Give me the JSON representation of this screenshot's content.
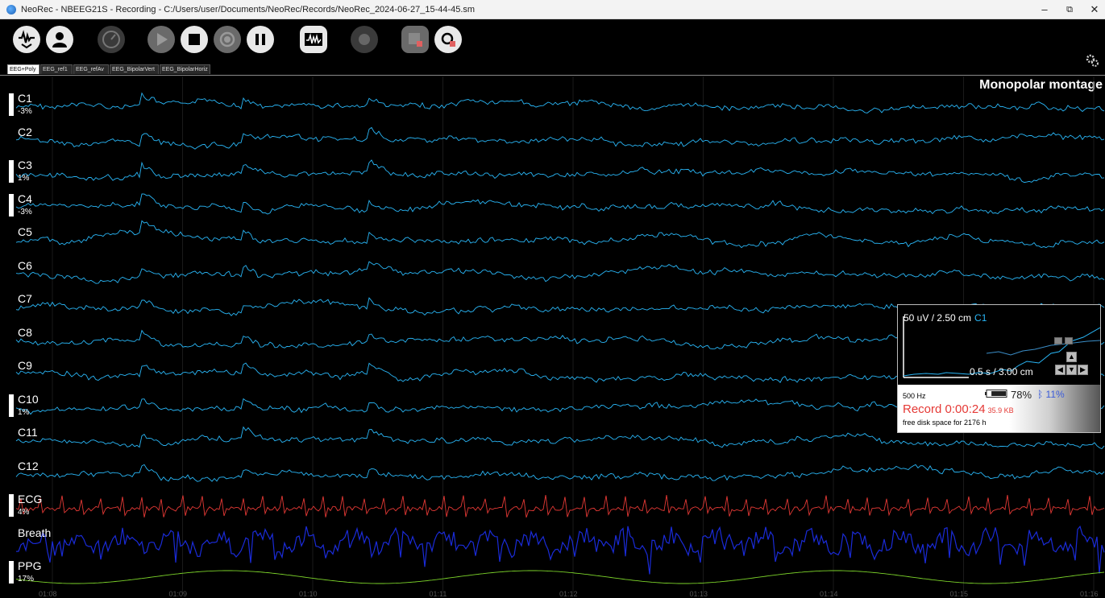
{
  "window": {
    "title": "NeoRec - NBEEG21S - Recording - C:/Users/user/Documents/NeoRec/Records/NeoRec_2024-06-27_15-44-45.sm",
    "minimize": "–",
    "maximize": "⧉",
    "close": "✕"
  },
  "toolbar": {
    "icons": [
      "signal-check-icon",
      "user-icon",
      "impedance-dial-icon",
      "play-icon",
      "stop-icon",
      "record-icon",
      "pause-icon",
      "waveform-icon",
      "marker-icon",
      "stop-record-icon",
      "zoom-record-icon",
      "settings-gear-icon"
    ]
  },
  "tabs": [
    {
      "label": "EEG+Poly",
      "active": true
    },
    {
      "label": "EEG_ref1",
      "active": false
    },
    {
      "label": "EEG_refAv",
      "active": false
    },
    {
      "label": "EEG_BipolarVert",
      "active": false
    },
    {
      "label": "EEG_BipolarHoriz",
      "active": false
    }
  ],
  "montage_title": "Monopolar montage",
  "channels": [
    {
      "name": "C1",
      "pct": "-3%",
      "indicator": true,
      "color": "#29b6f6"
    },
    {
      "name": "C2",
      "pct": "",
      "indicator": false,
      "color": "#29b6f6"
    },
    {
      "name": "C3",
      "pct": "1%",
      "indicator": true,
      "color": "#29b6f6"
    },
    {
      "name": "C4",
      "pct": "-3%",
      "indicator": true,
      "color": "#29b6f6"
    },
    {
      "name": "C5",
      "pct": "",
      "indicator": false,
      "color": "#29b6f6"
    },
    {
      "name": "C6",
      "pct": "",
      "indicator": false,
      "color": "#29b6f6"
    },
    {
      "name": "C7",
      "pct": "",
      "indicator": false,
      "color": "#29b6f6"
    },
    {
      "name": "C8",
      "pct": "",
      "indicator": false,
      "color": "#29b6f6"
    },
    {
      "name": "C9",
      "pct": "",
      "indicator": false,
      "color": "#29b6f6"
    },
    {
      "name": "C10",
      "pct": "1%",
      "indicator": true,
      "color": "#29b6f6"
    },
    {
      "name": "C11",
      "pct": "",
      "indicator": false,
      "color": "#29b6f6"
    },
    {
      "name": "C12",
      "pct": "",
      "indicator": false,
      "color": "#29b6f6"
    },
    {
      "name": "ECG",
      "pct": "4%",
      "indicator": true,
      "color": "#e53935"
    },
    {
      "name": "Breath",
      "pct": "",
      "indicator": false,
      "color": "#1a2bd8"
    },
    {
      "name": "PPG",
      "pct": "17%",
      "indicator": true,
      "color": "#7cd32a"
    }
  ],
  "time_axis": [
    "01:08",
    "01:09",
    "01:10",
    "01:11",
    "01:12",
    "01:13",
    "01:14",
    "01:15",
    "01:16"
  ],
  "scale_panel": {
    "amplitude": "50 uV / 2.50 cm",
    "channel": "C1",
    "timebase": "0.5 s / 3.00 cm",
    "sampling": "500 Hz",
    "battery": "78%",
    "battery_level": 0.78,
    "bluetooth_icon": "bluetooth-icon",
    "bluetooth": "11%",
    "record": "Record 0:00:24",
    "file_size": "35.9 KB",
    "disk": "free disk space for 2176 h"
  }
}
